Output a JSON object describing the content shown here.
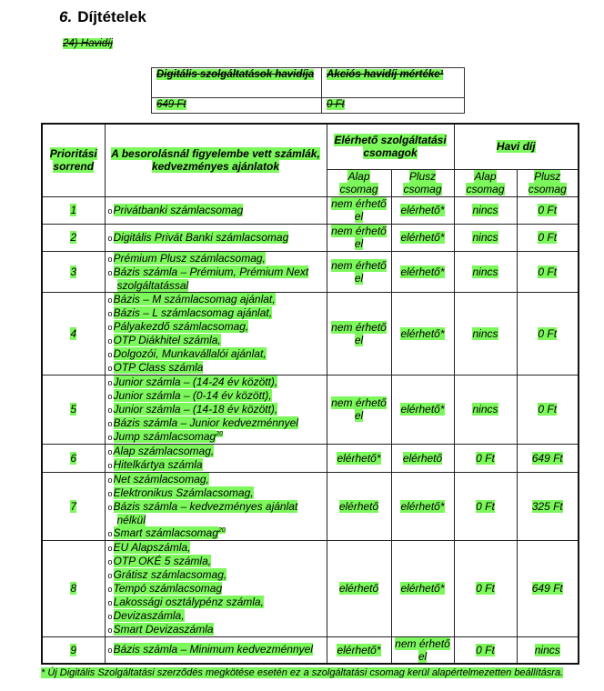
{
  "heading": {
    "number": "6.",
    "title": "Díjtételek"
  },
  "subheading": "24) Havidíj",
  "old_table": {
    "headers": [
      "Digitális szolgáltatások havidíja",
      "Akciós havidíj mértéke¹"
    ],
    "values": [
      "649 Ft",
      "0 Ft"
    ]
  },
  "table": {
    "headers": {
      "priority": "Prioritási sorrend",
      "accounts": "A besorolásnál figyelembe vett számlák, kedvezményes ajánlatok",
      "packages": "Elérhető szolgáltatási csomagok",
      "fee": "Havi díj",
      "alap": "Alap csomag",
      "plusz": "Plusz csomag"
    },
    "rows": [
      {
        "prio": "1",
        "items": [
          "Privátbanki számlacsomag"
        ],
        "alap": "nem érhető el",
        "plusz": "elérhető*",
        "fee_alap": "nincs",
        "fee_plusz": "0 Ft"
      },
      {
        "prio": "2",
        "items": [
          "Digitális Privát Banki számlacsomag"
        ],
        "alap": "nem érhető el",
        "plusz": "elérhető*",
        "fee_alap": "nincs",
        "fee_plusz": "0 Ft"
      },
      {
        "prio": "3",
        "items": [
          "Prémium Plusz számlacsomag,",
          "Bázis számla – Prémium, Prémium Next szolgáltatással"
        ],
        "alap": "nem érhető el",
        "plusz": "elérhető*",
        "fee_alap": "nincs",
        "fee_plusz": "0 Ft"
      },
      {
        "prio": "4",
        "items": [
          "Bázis – M számlacsomag ajánlat,",
          "Bázis – L számlacsomag ajánlat,",
          "Pályakezdő számlacsomag,",
          "OTP Diákhitel számla,",
          "Dolgozói, Munkavállalói ajánlat,",
          "OTP Class számla"
        ],
        "alap": "nem érhető el",
        "plusz": "elérhető*",
        "fee_alap": "nincs",
        "fee_plusz": "0 Ft"
      },
      {
        "prio": "5",
        "items": [
          "Junior számla – (14-24 év között),",
          "Junior számla – (0-14 év között),",
          "Junior számla – (14-18 év között),",
          "Bázis számla – Junior kedvezménnyel",
          "Jump számlacsomag"
        ],
        "sup": {
          "4": "20"
        },
        "alap": "nem érhető el",
        "plusz": "elérhető*",
        "fee_alap": "nincs",
        "fee_plusz": "0 Ft"
      },
      {
        "prio": "6",
        "items": [
          "Alap számlacsomag,",
          "Hitelkártya számla"
        ],
        "alap": "elérhető*",
        "plusz": "elérhető",
        "fee_alap": "0 Ft",
        "fee_plusz": "649 Ft"
      },
      {
        "prio": "7",
        "items": [
          "Net számlacsomag,",
          "Elektronikus Számlacsomag,",
          "Bázis számla – kedvezményes ajánlat nélkül",
          "Smart számlacsomag"
        ],
        "sup": {
          "3": "20"
        },
        "alap": "elérhető",
        "plusz": "elérhető*",
        "fee_alap": "0 Ft",
        "fee_plusz": "325 Ft"
      },
      {
        "prio": "8",
        "items": [
          "EU Alapszámla,",
          "OTP OKÉ 5 számla,",
          "Grátisz számlacsomag,",
          "Tempó számlacsomag",
          "Lakossági osztálypénz számla,",
          "Devizaszámla,",
          "Smart Devizaszámla"
        ],
        "alap": "elérhető",
        "plusz": "elérhető*",
        "fee_alap": "0 Ft",
        "fee_plusz": "649 Ft"
      },
      {
        "prio": "9",
        "items": [
          "Bázis számla – Minimum kedvezménnyel"
        ],
        "alap": "elérhető*",
        "plusz": "nem érhető el",
        "fee_alap": "0 Ft",
        "fee_plusz": "nincs"
      }
    ]
  },
  "footnote": "* Új Digitális Szolgáltatási szerződés megkötése esetén ez a szolgáltatási csomag kerül alapértelmezetten beállításra.",
  "colors": {
    "highlight": "#7cf75c"
  }
}
